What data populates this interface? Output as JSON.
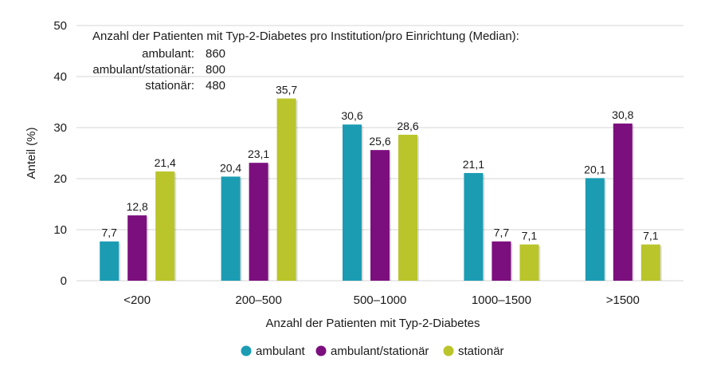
{
  "chart_data": {
    "type": "bar",
    "categories": [
      "<200",
      "200–500",
      "500–1000",
      "1000–1500",
      ">1500"
    ],
    "series": [
      {
        "name": "ambulant",
        "color": "#1b9cb3",
        "values": [
          7.7,
          20.4,
          30.6,
          21.1,
          20.1
        ]
      },
      {
        "name": "ambulant/stationär",
        "color": "#7c0f7e",
        "values": [
          12.8,
          23.1,
          25.6,
          7.7,
          30.8
        ]
      },
      {
        "name": "stationär",
        "color": "#b9c52a",
        "values": [
          21.4,
          35.7,
          28.6,
          7.1,
          7.1
        ]
      }
    ],
    "value_labels": [
      [
        "7,7",
        "20,4",
        "30,6",
        "21,1",
        "20,1"
      ],
      [
        "12,8",
        "23,1",
        "25,6",
        "7,7",
        "30,8"
      ],
      [
        "21,4",
        "35,7",
        "28,6",
        "7,1",
        "7,1"
      ]
    ],
    "xlabel": "Anzahl der Patienten mit Typ-2-Diabetes",
    "ylabel": "Anteil (%)",
    "ylim": [
      0,
      50
    ],
    "yticks": [
      0,
      10,
      20,
      30,
      40,
      50
    ],
    "grid": true,
    "legend_position": "bottom",
    "annotation": {
      "title": "Anzahl der Patienten mit Typ-2-Diabetes pro Institution/pro Einrichtung (Median):",
      "rows": [
        {
          "label": "ambulant:",
          "value": "860"
        },
        {
          "label": "ambulant/stationär:",
          "value": "800"
        },
        {
          "label": "stationär:",
          "value": "480"
        }
      ]
    }
  }
}
